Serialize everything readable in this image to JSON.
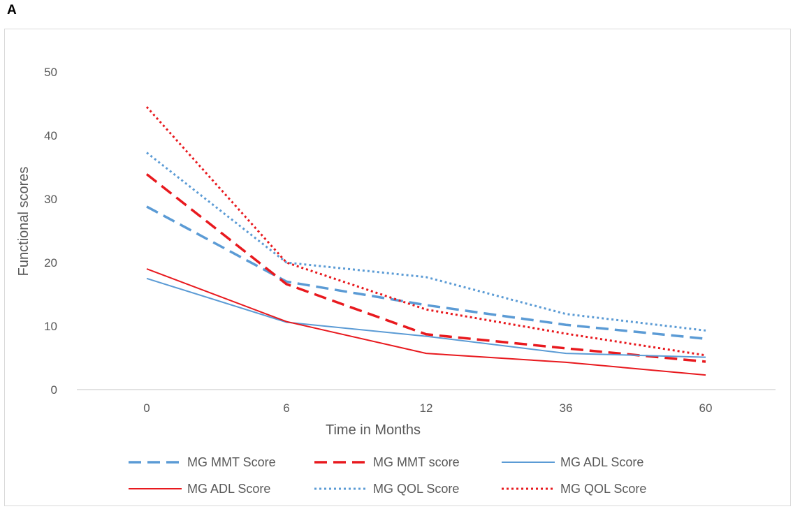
{
  "panel_label": "A",
  "chart_data": {
    "type": "line",
    "title": "",
    "xlabel": "Time in Months",
    "ylabel": "Functional scores",
    "categories": [
      "0",
      "6",
      "12",
      "36",
      "60"
    ],
    "ylim": [
      0,
      50
    ],
    "yticks": [
      "0",
      "10",
      "20",
      "30",
      "40",
      "50"
    ],
    "grid": false,
    "legend_position": "bottom",
    "series": [
      {
        "name": "MG MMT Score",
        "color": "#5b9bd5",
        "dash": "dashed",
        "values": [
          28.8,
          17.0,
          13.3,
          10.2,
          8.0
        ]
      },
      {
        "name": "MG MMT score",
        "color": "#e8191e",
        "dash": "dashed",
        "values": [
          33.9,
          16.6,
          8.7,
          6.5,
          4.4
        ]
      },
      {
        "name": "MG ADL Score",
        "color": "#5b9bd5",
        "dash": "solid",
        "values": [
          17.5,
          10.6,
          8.4,
          5.7,
          5.1
        ]
      },
      {
        "name": "MG ADL Score",
        "color": "#e8191e",
        "dash": "solid",
        "values": [
          19.0,
          10.7,
          5.7,
          4.3,
          2.3
        ]
      },
      {
        "name": "MG QOL Score",
        "color": "#5b9bd5",
        "dash": "dotted",
        "values": [
          37.3,
          20.0,
          17.7,
          11.9,
          9.3
        ]
      },
      {
        "name": "MG QOL Score",
        "color": "#e8191e",
        "dash": "dotted",
        "values": [
          44.5,
          20.0,
          12.6,
          8.8,
          5.4
        ]
      }
    ]
  }
}
